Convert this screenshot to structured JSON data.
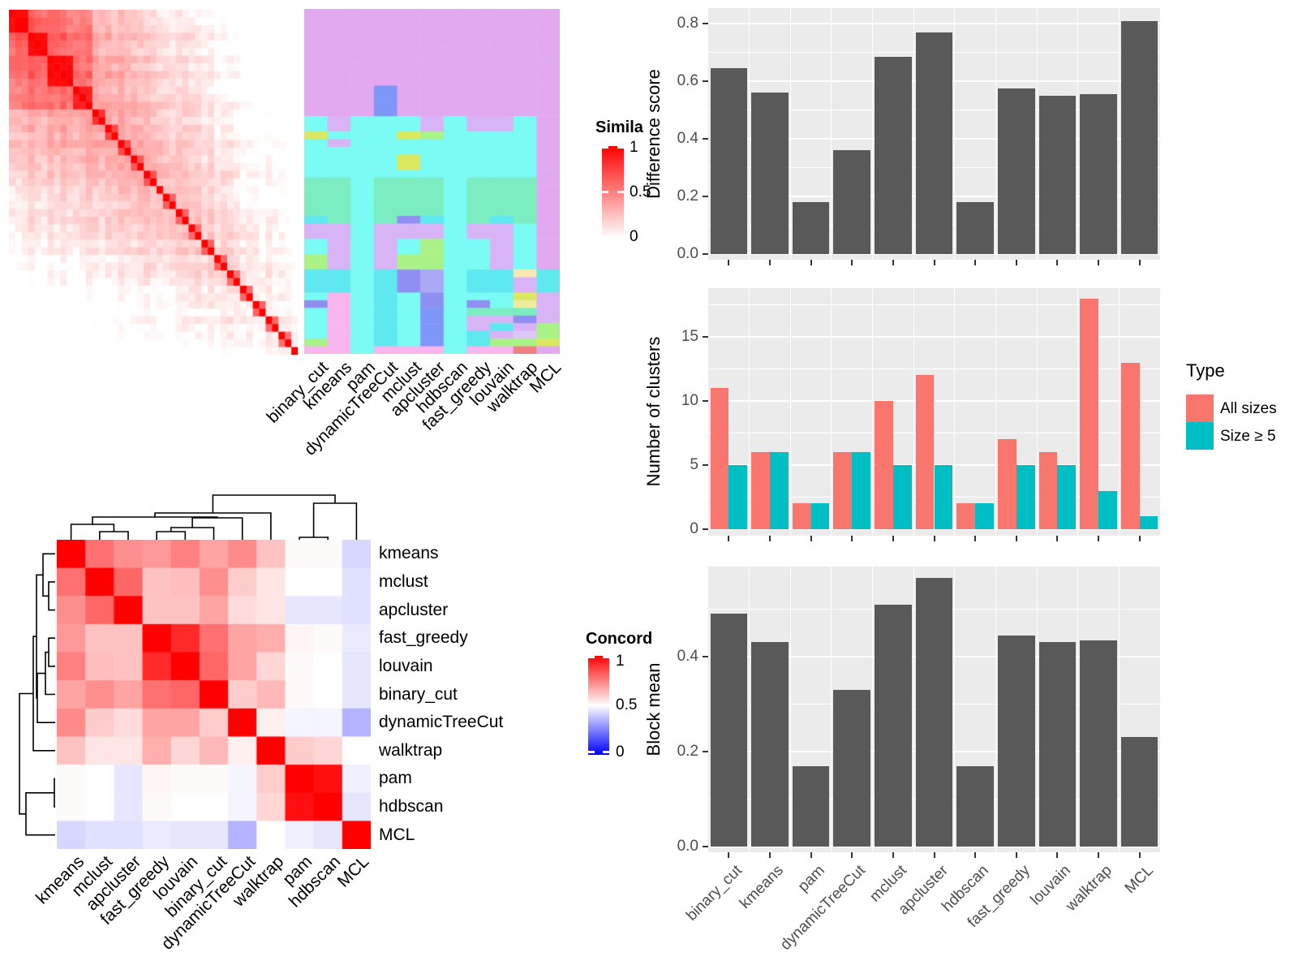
{
  "methods_col_order": [
    "binary_cut",
    "kmeans",
    "pam",
    "dynamicTreeCut",
    "mclust",
    "apcluster",
    "hdbscan",
    "fast_greedy",
    "louvain",
    "walktrap",
    "MCL"
  ],
  "similarity_legend": {
    "title": "Simila",
    "tick_labels": [
      "1",
      "0.5",
      "0"
    ],
    "color_high": "#FF0000",
    "color_low": "#FFFFFF"
  },
  "concordance_legend": {
    "title": "Concord",
    "tick_labels": [
      "1",
      "0.5",
      "0"
    ],
    "color_high": "#FF0000",
    "color_mid": "#FFFFFF",
    "color_low": "#0000FF"
  },
  "type_legend": {
    "title": "Type",
    "items": [
      {
        "label": "All sizes",
        "color": "#F8766D"
      },
      {
        "label": "Size ≥ 5",
        "color": "#00BFC4"
      }
    ]
  },
  "chart_data": [
    {
      "id": "similarity_matrix",
      "type": "heatmap",
      "n": 45,
      "value_range": [
        0,
        1
      ],
      "color_low": "#FFFFFF",
      "color_high": "#FF0000",
      "diagonal_value": 1,
      "diagonal_blocks": [
        [
          0,
          3,
          0.97
        ],
        [
          3,
          3,
          0.95
        ],
        [
          6,
          4,
          0.97
        ],
        [
          10,
          3,
          0.88
        ],
        [
          13,
          2,
          0.8
        ],
        [
          15,
          2,
          0.72
        ],
        [
          17,
          2,
          0.7
        ],
        [
          19,
          2,
          0.68
        ],
        [
          21,
          2,
          0.66
        ],
        [
          24,
          2,
          0.64
        ],
        [
          26,
          2,
          0.62
        ],
        [
          28,
          2,
          0.6
        ],
        [
          30,
          2,
          0.6
        ],
        [
          32,
          2,
          0.6
        ],
        [
          34,
          2,
          0.58
        ],
        [
          36,
          2,
          0.58
        ],
        [
          38,
          2,
          0.58
        ],
        [
          40,
          2,
          0.58
        ],
        [
          42,
          2,
          0.58
        ]
      ],
      "background": {
        "base": 0.52,
        "row_decay": 0.011,
        "offdiag_decay": 0.006,
        "topleft_size": 13,
        "topleft_boost": 0.18,
        "noise": 0.12,
        "stripe": 0.1,
        "seed": 11
      }
    },
    {
      "id": "partition_matrix",
      "type": "heatmap",
      "columns": [
        "binary_cut",
        "kmeans",
        "pam",
        "dynamicTreeCut",
        "mclust",
        "apcluster",
        "hdbscan",
        "fast_greedy",
        "louvain",
        "walktrap",
        "MCL"
      ],
      "palette": {
        "P": "#E2A9F0",
        "B": "#7E96F8",
        "C": "#7AFBF3",
        "T": "#5FE8EF",
        "G": "#7BEDC0",
        "g": "#A9F287",
        "Y": "#DCE85F",
        "y": "#F0EC9E",
        "V": "#D8B4F6",
        "v": "#DCC8F7",
        "K": "#F9B5EE",
        "W": "#F9E8B2",
        "R": "#F38080",
        "b": "#8F8FF2",
        "L": "#A9A9F5"
      },
      "rows": [
        {
          "span": 10,
          "cells": "PPPPPPPPPPP"
        },
        {
          "span": 4,
          "cells": "PPPBPPPPPPP"
        },
        {
          "span": 2,
          "cells": "CVCCCVCVVCP"
        },
        {
          "span": 1,
          "cells": "YCCCYgCCCCP"
        },
        {
          "span": 1,
          "cells": "CVCCCCCCCCP"
        },
        {
          "span": 1,
          "cells": "CCCCCCCCCCP"
        },
        {
          "span": 2,
          "cells": "CCCCYCCCCCP"
        },
        {
          "span": 1,
          "cells": "CCCCCCCCCCP"
        },
        {
          "span": 5,
          "cells": "GGCGGGCGGGP"
        },
        {
          "span": 1,
          "cells": "TGCGbTCGTGP"
        },
        {
          "span": 2,
          "cells": "VVCVVVCVVCP"
        },
        {
          "span": 2,
          "cells": "CVCVCgCCVCP"
        },
        {
          "span": 2,
          "cells": "gVCVggCCVCP"
        },
        {
          "span": 1,
          "cells": "TTCTbLCTTWT"
        },
        {
          "span": 2,
          "cells": "TTCTbLCTTVT"
        },
        {
          "span": 1,
          "cells": "CKCTCbCCCYV"
        },
        {
          "span": 1,
          "cells": "bKCTCbCbCyV"
        },
        {
          "span": 1,
          "cells": "CKCTCBCGGGV"
        },
        {
          "span": 1,
          "cells": "CKCTCBCVVbV"
        },
        {
          "span": 1,
          "cells": "CKCTCBCVTVg"
        },
        {
          "span": 1,
          "cells": "CKCTCBCTVvg"
        },
        {
          "span": 1,
          "cells": "gKCTCBCTggY"
        },
        {
          "span": 1,
          "cells": "KKCKKKCKKRP"
        }
      ]
    },
    {
      "id": "concordance_matrix",
      "type": "heatmap",
      "labels": [
        "kmeans",
        "mclust",
        "apcluster",
        "fast_greedy",
        "louvain",
        "binary_cut",
        "dynamicTreeCut",
        "walktrap",
        "pam",
        "hdbscan",
        "MCL"
      ],
      "value_range": [
        0,
        1
      ],
      "color_low": "#0000FF",
      "color_mid": "#FFFFFF",
      "color_high": "#FF0000",
      "matrix": [
        [
          1.0,
          0.78,
          0.72,
          0.7,
          0.75,
          0.68,
          0.73,
          0.62,
          0.51,
          0.51,
          0.42
        ],
        [
          0.78,
          1.0,
          0.8,
          0.62,
          0.63,
          0.72,
          0.6,
          0.55,
          0.5,
          0.5,
          0.44
        ],
        [
          0.72,
          0.8,
          1.0,
          0.62,
          0.62,
          0.68,
          0.57,
          0.55,
          0.45,
          0.45,
          0.44
        ],
        [
          0.7,
          0.62,
          0.62,
          1.0,
          0.92,
          0.78,
          0.68,
          0.66,
          0.52,
          0.51,
          0.46
        ],
        [
          0.75,
          0.63,
          0.62,
          0.92,
          1.0,
          0.8,
          0.68,
          0.58,
          0.51,
          0.5,
          0.45
        ],
        [
          0.68,
          0.72,
          0.68,
          0.78,
          0.8,
          1.0,
          0.6,
          0.64,
          0.51,
          0.5,
          0.45
        ],
        [
          0.73,
          0.6,
          0.57,
          0.68,
          0.68,
          0.6,
          1.0,
          0.53,
          0.48,
          0.48,
          0.35
        ],
        [
          0.62,
          0.55,
          0.55,
          0.66,
          0.58,
          0.64,
          0.53,
          1.0,
          0.6,
          0.58,
          0.5
        ],
        [
          0.51,
          0.5,
          0.45,
          0.52,
          0.51,
          0.51,
          0.48,
          0.6,
          1.0,
          0.97,
          0.47
        ],
        [
          0.51,
          0.5,
          0.45,
          0.51,
          0.5,
          0.5,
          0.48,
          0.58,
          0.97,
          1.0,
          0.45
        ],
        [
          0.42,
          0.44,
          0.44,
          0.46,
          0.45,
          0.45,
          0.35,
          0.5,
          0.47,
          0.45,
          1.0
        ]
      ]
    },
    {
      "id": "difference_score",
      "type": "bar",
      "categories": [
        "binary_cut",
        "kmeans",
        "pam",
        "dynamicTreeCut",
        "mclust",
        "apcluster",
        "hdbscan",
        "fast_greedy",
        "louvain",
        "walktrap",
        "MCL"
      ],
      "values": [
        0.645,
        0.56,
        0.18,
        0.36,
        0.685,
        0.77,
        0.18,
        0.575,
        0.55,
        0.555,
        0.81
      ],
      "ylabel": "Difference score",
      "yticks": [
        0,
        0.2,
        0.4,
        0.6,
        0.8
      ],
      "ytick_labels": [
        "0.0",
        "0.2",
        "0.4",
        "0.6",
        "0.8"
      ],
      "ylim": [
        0,
        0.855
      ],
      "bar_color": "#595959",
      "panel_bg": "#EBEBEB",
      "grid": true,
      "x_labels_shown": false
    },
    {
      "id": "number_of_clusters",
      "type": "bar",
      "categories": [
        "binary_cut",
        "kmeans",
        "pam",
        "dynamicTreeCut",
        "mclust",
        "apcluster",
        "hdbscan",
        "fast_greedy",
        "louvain",
        "walktrap",
        "MCL"
      ],
      "series": [
        {
          "name": "All sizes",
          "color": "#F8766D",
          "values": [
            11,
            6,
            2,
            6,
            10,
            12,
            2,
            7,
            6,
            18,
            13
          ]
        },
        {
          "name": "Size ≥ 5",
          "color": "#00BFC4",
          "values": [
            5,
            6,
            2,
            6,
            5,
            5,
            2,
            5,
            5,
            3,
            1
          ]
        }
      ],
      "ylabel": "Number of clusters",
      "yticks": [
        0,
        5,
        10,
        15
      ],
      "ytick_labels": [
        "0",
        "5",
        "10",
        "15"
      ],
      "ylim": [
        0,
        18.8
      ],
      "legend_title": "Type",
      "panel_bg": "#EBEBEB",
      "grid": true,
      "x_labels_shown": false
    },
    {
      "id": "block_mean",
      "type": "bar",
      "categories": [
        "binary_cut",
        "kmeans",
        "pam",
        "dynamicTreeCut",
        "mclust",
        "apcluster",
        "hdbscan",
        "fast_greedy",
        "louvain",
        "walktrap",
        "MCL"
      ],
      "values": [
        0.49,
        0.43,
        0.17,
        0.33,
        0.51,
        0.565,
        0.17,
        0.445,
        0.43,
        0.435,
        0.23
      ],
      "ylabel": "Block mean",
      "yticks": [
        0,
        0.2,
        0.4
      ],
      "ytick_labels": [
        "0.0",
        "0.2",
        "0.4"
      ],
      "ylim": [
        0,
        0.59
      ],
      "bar_color": "#595959",
      "panel_bg": "#EBEBEB",
      "grid": true,
      "x_labels_shown": true
    }
  ]
}
